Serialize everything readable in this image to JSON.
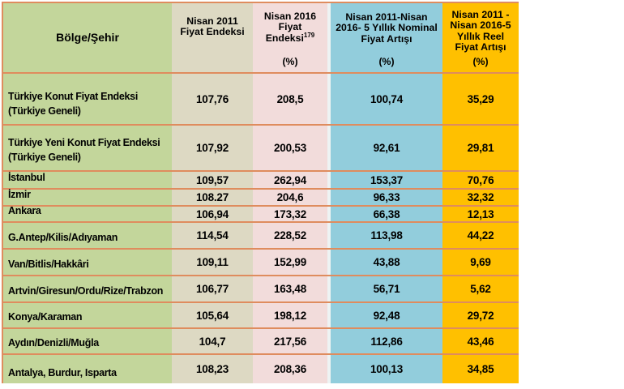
{
  "table": {
    "header": {
      "region": "Bölge/Şehir",
      "v2011": "Nisan 2011\nFiyat Endeksi",
      "v2016": "Nisan 2016\nFiyat\nEndeksi",
      "v2016_sup": "179",
      "v2016_pct": "(%)",
      "nominal": "Nisan 2011-Nisan\n2016- 5 Yıllık Nominal\nFiyat Artışı",
      "nominal_pct": "(%)",
      "real": "Nisan 2011 -\nNisan 2016-5\nYıllık Reel\nFiyat Artışı",
      "real_pct": "(%)"
    },
    "rows": [
      {
        "region": "Türkiye Konut Fiyat Endeksi\n(Türkiye Geneli)",
        "v2011": "107,76",
        "v2016": "208,5",
        "nominal": "100,74",
        "real": "35,29"
      },
      {
        "region": "Türkiye Yeni Konut Fiyat Endeksi\n(Türkiye Geneli)",
        "v2011": "107,92",
        "v2016": "200,53",
        "nominal": "92,61",
        "real": "29,81"
      },
      {
        "region": "İstanbul",
        "v2011": "109,57",
        "v2016": "262,94",
        "nominal": "153,37",
        "real": "70,76"
      },
      {
        "region": "İzmir",
        "v2011": "108.27",
        "v2016": "204,6",
        "nominal": "96,33",
        "real": "32,32"
      },
      {
        "region": "Ankara",
        "v2011": "106,94",
        "v2016": "173,32",
        "nominal": "66,38",
        "real": "12,13"
      },
      {
        "region": "G.Antep/Kilis/Adıyaman",
        "v2011": "114,54",
        "v2016": "228,52",
        "nominal": "113,98",
        "real": "44,22"
      },
      {
        "region": "Van/Bitlis/Hakkâri",
        "v2011": "109,11",
        "v2016": "152,99",
        "nominal": "43,88",
        "real": "9,69"
      },
      {
        "region": "Artvin/Giresun/Ordu/Rize/Trabzon",
        "v2011": "106,77",
        "v2016": "163,48",
        "nominal": "56,71",
        "real": "5,62"
      },
      {
        "region": "Konya/Karaman",
        "v2011": "105,64",
        "v2016": "198,12",
        "nominal": "92,48",
        "real": "29,72"
      },
      {
        "region": "Aydın/Denizli/Muğla",
        "v2011": "104,7",
        "v2016": "217,56",
        "nominal": "112,86",
        "real": "43,46"
      },
      {
        "region": "Antalya, Burdur, Isparta",
        "v2011": "108,23",
        "v2016": "208,36",
        "nominal": "100,13",
        "real": "34,85"
      }
    ],
    "colors": {
      "region_bg": "#c3d69b",
      "v2011_bg": "#ddd9c3",
      "v2016_bg": "#f2dcdb",
      "nominal_bg": "#92cddc",
      "real_bg": "#ffc000",
      "border": "#df8c5e"
    }
  }
}
